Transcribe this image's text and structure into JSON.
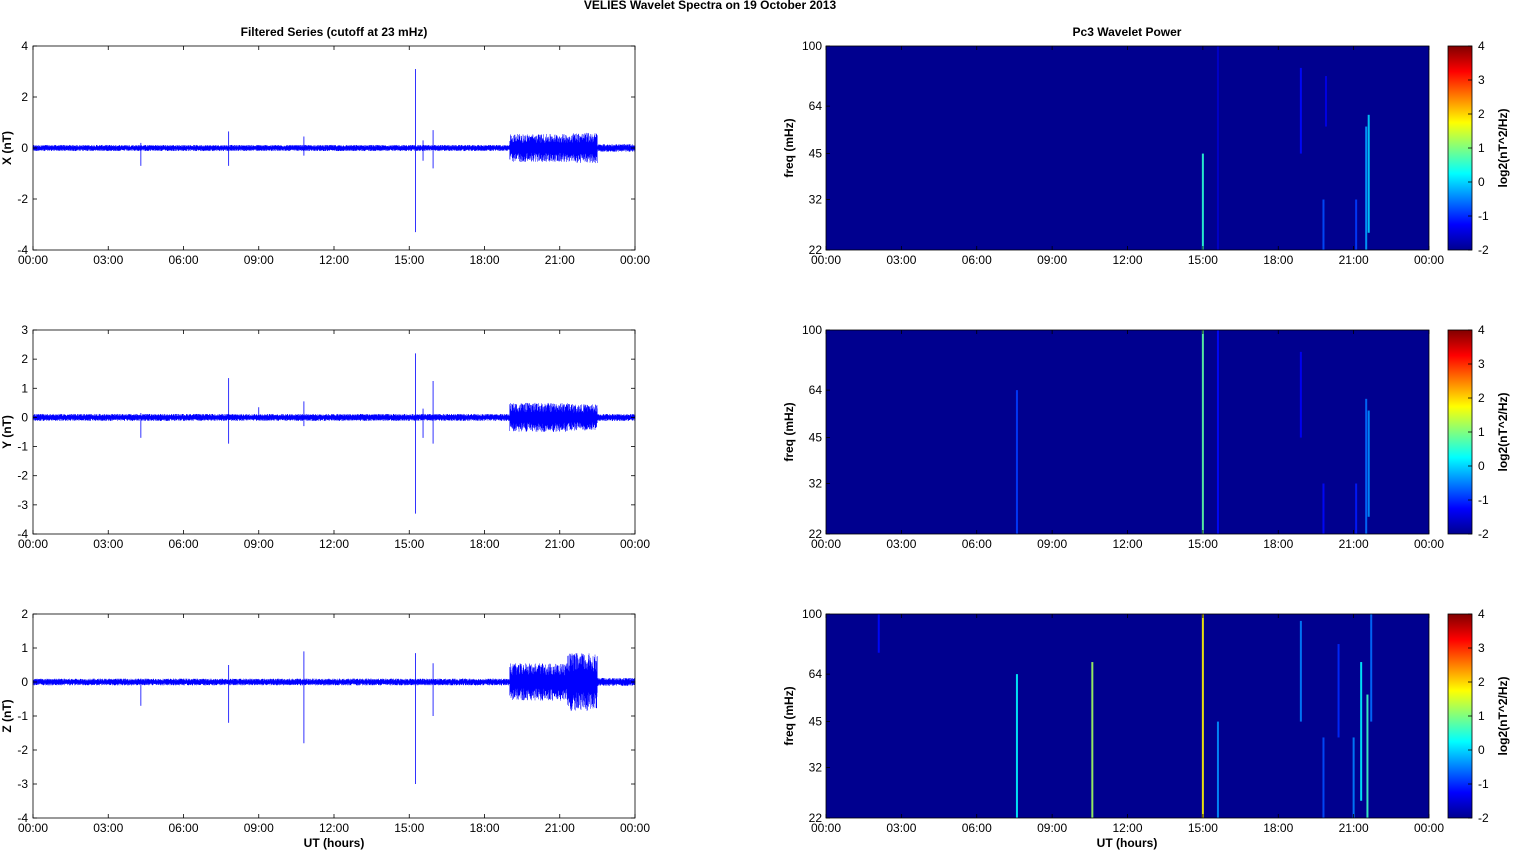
{
  "figure": {
    "title": "VELIES Wavelet Spectra on 19 October   2013",
    "left_column_title": "Filtered Series (cutoff at 23 mHz)",
    "right_column_title": "Pc3 Wavelet Power",
    "xlabel": "UT (hours)"
  },
  "colors": {
    "trace": "#0000ff",
    "spectrogram_background": "#00008f",
    "axis": "#000000"
  },
  "chart_data": [
    {
      "type": "line",
      "component": "X",
      "ylabel": "X (nT)",
      "xlim": [
        0,
        24
      ],
      "ylim": [
        -4,
        4
      ],
      "yticks": [
        -4,
        -2,
        0,
        2,
        4
      ],
      "xticks": [
        "00:00",
        "03:00",
        "06:00",
        "09:00",
        "12:00",
        "15:00",
        "18:00",
        "21:00",
        "00:00"
      ],
      "noise_segments": [
        {
          "start": 0,
          "end": 19,
          "amplitude": 0.12
        },
        {
          "start": 19,
          "end": 21.5,
          "amplitude": 0.55
        },
        {
          "start": 21.5,
          "end": 22.5,
          "amplitude": 0.6
        },
        {
          "start": 22.5,
          "end": 24,
          "amplitude": 0.15
        }
      ],
      "spikes": [
        {
          "t": 4.3,
          "min": -0.7,
          "max": 0.2
        },
        {
          "t": 7.8,
          "min": -0.7,
          "max": 0.65
        },
        {
          "t": 10.8,
          "min": -0.3,
          "max": 0.45
        },
        {
          "t": 15.25,
          "min": -3.3,
          "max": 3.1
        },
        {
          "t": 15.55,
          "min": -0.5,
          "max": 0.3
        },
        {
          "t": 15.95,
          "min": -0.8,
          "max": 0.7
        }
      ]
    },
    {
      "type": "line",
      "component": "Y",
      "ylabel": "Y (nT)",
      "xlim": [
        0,
        24
      ],
      "ylim": [
        -4,
        3
      ],
      "yticks": [
        -4,
        -3,
        -2,
        -1,
        0,
        1,
        2,
        3
      ],
      "xticks": [
        "00:00",
        "03:00",
        "06:00",
        "09:00",
        "12:00",
        "15:00",
        "18:00",
        "21:00",
        "00:00"
      ],
      "noise_segments": [
        {
          "start": 0,
          "end": 19,
          "amplitude": 0.12
        },
        {
          "start": 19,
          "end": 21.5,
          "amplitude": 0.5
        },
        {
          "start": 21.5,
          "end": 22.5,
          "amplitude": 0.45
        },
        {
          "start": 22.5,
          "end": 24,
          "amplitude": 0.12
        }
      ],
      "spikes": [
        {
          "t": 4.3,
          "min": -0.7,
          "max": 0.15
        },
        {
          "t": 7.8,
          "min": -0.9,
          "max": 1.35
        },
        {
          "t": 9.0,
          "min": -0.1,
          "max": 0.35
        },
        {
          "t": 10.8,
          "min": -0.3,
          "max": 0.55
        },
        {
          "t": 15.25,
          "min": -3.3,
          "max": 2.2
        },
        {
          "t": 15.55,
          "min": -0.7,
          "max": 0.3
        },
        {
          "t": 15.95,
          "min": -0.9,
          "max": 1.25
        }
      ]
    },
    {
      "type": "line",
      "component": "Z",
      "ylabel": "Z (nT)",
      "xlim": [
        0,
        24
      ],
      "ylim": [
        -4,
        2
      ],
      "yticks": [
        -4,
        -3,
        -2,
        -1,
        0,
        1,
        2
      ],
      "xticks": [
        "00:00",
        "03:00",
        "06:00",
        "09:00",
        "12:00",
        "15:00",
        "18:00",
        "21:00",
        "00:00"
      ],
      "noise_segments": [
        {
          "start": 0,
          "end": 19,
          "amplitude": 0.1
        },
        {
          "start": 19,
          "end": 21.3,
          "amplitude": 0.55
        },
        {
          "start": 21.3,
          "end": 22.5,
          "amplitude": 0.85
        },
        {
          "start": 22.5,
          "end": 24,
          "amplitude": 0.12
        }
      ],
      "spikes": [
        {
          "t": 4.3,
          "min": -0.7,
          "max": 0.1
        },
        {
          "t": 7.8,
          "min": -1.2,
          "max": 0.5
        },
        {
          "t": 10.8,
          "min": -1.8,
          "max": 0.9
        },
        {
          "t": 15.25,
          "min": -3.0,
          "max": 0.85
        },
        {
          "t": 15.95,
          "min": -1.0,
          "max": 0.55
        }
      ]
    },
    {
      "type": "heatmap",
      "component": "X",
      "ylabel": "freq (mHz)",
      "xlim": [
        0,
        24
      ],
      "ylim": [
        22,
        100
      ],
      "yscale": "log",
      "yticks": [
        22,
        32,
        45,
        64,
        100
      ],
      "xticks": [
        "00:00",
        "03:00",
        "06:00",
        "09:00",
        "12:00",
        "15:00",
        "18:00",
        "21:00",
        "00:00"
      ],
      "colorbar_label": "log2(nT^2/Hz)",
      "colorbar_range": [
        -2,
        4
      ],
      "colorbar_ticks": [
        4,
        3,
        2,
        1,
        0,
        -1,
        -2
      ],
      "features": [
        {
          "t": 15.0,
          "fmin": 22,
          "fmax": 45,
          "value": 0.5
        },
        {
          "t": 15.6,
          "fmin": 22,
          "fmax": 100,
          "value": -1.6
        },
        {
          "t": 18.9,
          "fmin": 45,
          "fmax": 85,
          "value": -1.2
        },
        {
          "t": 19.8,
          "fmin": 22,
          "fmax": 32,
          "value": -0.8
        },
        {
          "t": 19.9,
          "fmin": 55,
          "fmax": 80,
          "value": -1.4
        },
        {
          "t": 21.1,
          "fmin": 22,
          "fmax": 32,
          "value": -0.9
        },
        {
          "t": 21.5,
          "fmin": 22,
          "fmax": 55,
          "value": -0.3
        },
        {
          "t": 21.6,
          "fmin": 25,
          "fmax": 60,
          "value": 0.0
        }
      ]
    },
    {
      "type": "heatmap",
      "component": "Y",
      "ylabel": "freq (mHz)",
      "xlim": [
        0,
        24
      ],
      "ylim": [
        22,
        100
      ],
      "yscale": "log",
      "yticks": [
        22,
        32,
        45,
        64,
        100
      ],
      "xticks": [
        "00:00",
        "03:00",
        "06:00",
        "09:00",
        "12:00",
        "15:00",
        "18:00",
        "21:00",
        "00:00"
      ],
      "colorbar_label": "log2(nT^2/Hz)",
      "colorbar_range": [
        -2,
        4
      ],
      "colorbar_ticks": [
        4,
        3,
        2,
        1,
        0,
        -1,
        -2
      ],
      "features": [
        {
          "t": 7.6,
          "fmin": 22,
          "fmax": 64,
          "value": -0.9
        },
        {
          "t": 15.0,
          "fmin": 22,
          "fmax": 100,
          "value": 0.8
        },
        {
          "t": 15.6,
          "fmin": 22,
          "fmax": 100,
          "value": -1.2
        },
        {
          "t": 18.9,
          "fmin": 45,
          "fmax": 85,
          "value": -1.3
        },
        {
          "t": 19.8,
          "fmin": 22,
          "fmax": 32,
          "value": -1.2
        },
        {
          "t": 21.1,
          "fmin": 22,
          "fmax": 32,
          "value": -1.1
        },
        {
          "t": 21.5,
          "fmin": 22,
          "fmax": 60,
          "value": -0.6
        },
        {
          "t": 21.6,
          "fmin": 25,
          "fmax": 55,
          "value": -0.4
        }
      ]
    },
    {
      "type": "heatmap",
      "component": "Z",
      "ylabel": "freq (mHz)",
      "xlim": [
        0,
        24
      ],
      "ylim": [
        22,
        100
      ],
      "yscale": "log",
      "yticks": [
        22,
        32,
        45,
        64,
        100
      ],
      "xticks": [
        "00:00",
        "03:00",
        "06:00",
        "09:00",
        "12:00",
        "15:00",
        "18:00",
        "21:00",
        "00:00"
      ],
      "colorbar_label": "log2(nT^2/Hz)",
      "colorbar_range": [
        -2,
        4
      ],
      "colorbar_ticks": [
        4,
        3,
        2,
        1,
        0,
        -1,
        -2
      ],
      "features": [
        {
          "t": 2.1,
          "fmin": 75,
          "fmax": 100,
          "value": -1.2
        },
        {
          "t": 7.6,
          "fmin": 22,
          "fmax": 64,
          "value": 0.2
        },
        {
          "t": 10.6,
          "fmin": 22,
          "fmax": 70,
          "value": 1.2
        },
        {
          "t": 15.0,
          "fmin": 22,
          "fmax": 100,
          "value": 1.8
        },
        {
          "t": 15.6,
          "fmin": 22,
          "fmax": 45,
          "value": -0.4
        },
        {
          "t": 18.9,
          "fmin": 45,
          "fmax": 95,
          "value": -0.5
        },
        {
          "t": 19.8,
          "fmin": 22,
          "fmax": 40,
          "value": -0.8
        },
        {
          "t": 20.4,
          "fmin": 40,
          "fmax": 80,
          "value": -1.0
        },
        {
          "t": 21.0,
          "fmin": 22,
          "fmax": 40,
          "value": -0.5
        },
        {
          "t": 21.3,
          "fmin": 25,
          "fmax": 70,
          "value": 0.2
        },
        {
          "t": 21.55,
          "fmin": 22,
          "fmax": 55,
          "value": 0.6
        },
        {
          "t": 21.7,
          "fmin": 45,
          "fmax": 100,
          "value": -0.6
        }
      ]
    }
  ]
}
